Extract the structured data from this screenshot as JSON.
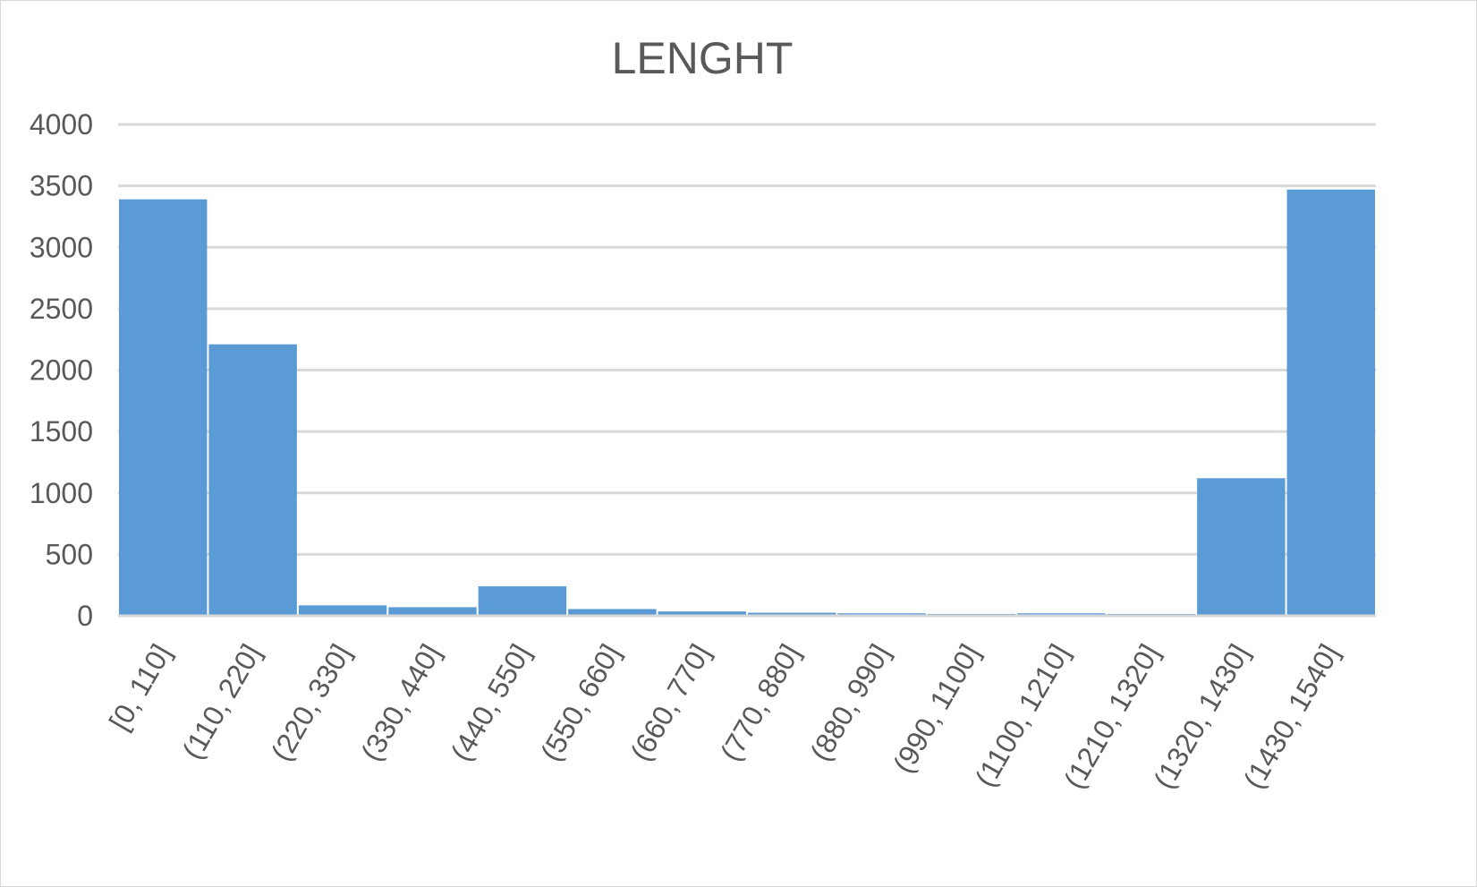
{
  "chart_data": {
    "type": "bar",
    "title": "LENGHT",
    "xlabel": "",
    "ylabel": "",
    "categories": [
      "[0, 110]",
      "(110, 220]",
      "(220, 330]",
      "(330, 440]",
      "(440, 550]",
      "(550, 660]",
      "(660, 770]",
      "(770, 880]",
      "(880, 990]",
      "(990, 1100]",
      "(1100, 1210]",
      "(1210, 1320]",
      "(1320, 1430]",
      "(1430, 1540]"
    ],
    "values": [
      3390,
      2210,
      85,
      70,
      240,
      55,
      35,
      25,
      20,
      15,
      20,
      15,
      1120,
      3470
    ],
    "yticks": [
      "0",
      "500",
      "1000",
      "1500",
      "2000",
      "2500",
      "3000",
      "3500",
      "4000"
    ],
    "ylim": [
      0,
      4000
    ],
    "grid": true,
    "legend": "none",
    "bar_color": "#5b9bd5",
    "grid_color": "#d9d9d9"
  }
}
